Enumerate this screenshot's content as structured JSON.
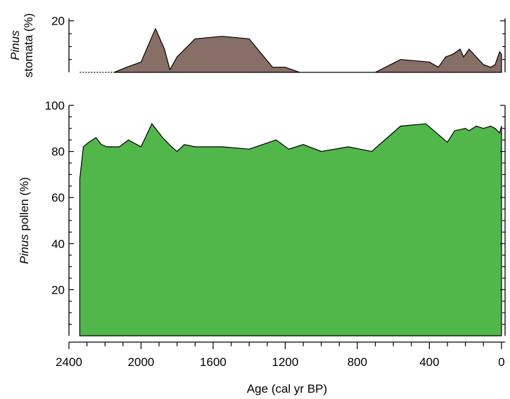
{
  "chart_data": {
    "type": "area",
    "x_axis": {
      "label": "Age (cal yr BP)",
      "range": [
        2400,
        -20
      ],
      "reversed": true,
      "major_ticks": [
        2400,
        2000,
        1600,
        1200,
        800,
        400,
        0
      ],
      "minor_step": 100
    },
    "panels": [
      {
        "id": "stomata",
        "ylabel_italic": "Pinus",
        "ylabel_rest": "stomata (%)",
        "ylim": [
          0,
          21
        ],
        "y_ticks": [
          20
        ],
        "minor_step": 5,
        "fill_color": "#876e66",
        "start_x": 2150,
        "dashed_baseline_from": 2340,
        "series": {
          "name": "Pinus stomata",
          "x": [
            2150,
            2080,
            2000,
            1920,
            1870,
            1840,
            1800,
            1700,
            1550,
            1400,
            1270,
            1200,
            1120,
            1000,
            700,
            560,
            400,
            350,
            310,
            270,
            230,
            210,
            180,
            140,
            100,
            60,
            35,
            10,
            0
          ],
          "y": [
            0,
            2,
            4,
            17,
            9,
            1,
            6,
            13,
            14,
            13,
            2,
            2,
            0,
            0,
            0,
            5,
            4,
            2,
            6,
            7,
            9,
            6,
            9,
            6,
            3,
            2,
            3,
            8,
            7
          ]
        }
      },
      {
        "id": "pollen",
        "ylabel_italic": "Pinus",
        "ylabel_rest": "pollen (%)",
        "ylim": [
          0,
          100
        ],
        "y_ticks": [
          20,
          40,
          60,
          80,
          100
        ],
        "minor_step": 5,
        "fill_color": "#52b74a",
        "series": {
          "name": "Pinus pollen",
          "x": [
            2340,
            2320,
            2290,
            2250,
            2220,
            2190,
            2120,
            2070,
            2000,
            1940,
            1880,
            1830,
            1800,
            1760,
            1700,
            1550,
            1400,
            1250,
            1180,
            1100,
            1000,
            850,
            720,
            560,
            420,
            300,
            260,
            200,
            180,
            140,
            100,
            60,
            35,
            10,
            0
          ],
          "y": [
            68,
            82,
            84,
            86,
            83,
            82,
            82,
            85,
            82,
            92,
            86,
            82,
            80,
            83,
            82,
            82,
            81,
            85,
            81,
            83,
            80,
            82,
            80,
            91,
            92,
            84,
            89,
            90,
            89,
            91,
            90,
            91,
            90,
            88,
            91
          ]
        }
      }
    ]
  }
}
